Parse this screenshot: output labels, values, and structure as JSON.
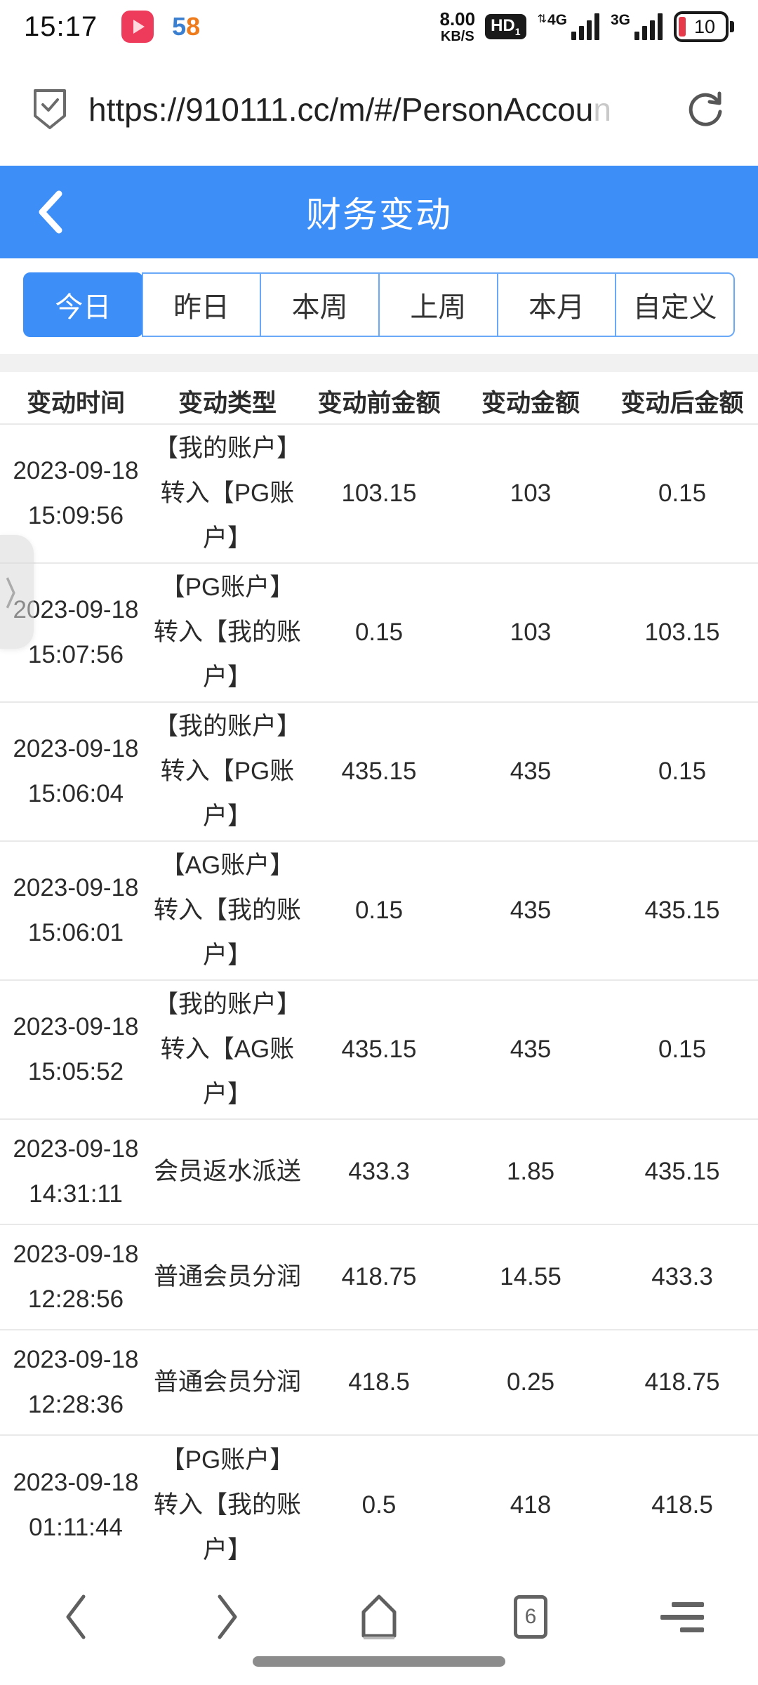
{
  "colors": {
    "accent_blue": "#3d8ef7",
    "battery_warning_red": "#e6394a",
    "play_badge_red": "#ee3b5b",
    "logo58_blue": "#3b7fd0",
    "logo58_orange": "#ef7c1c"
  },
  "status_bar": {
    "time": "15:17",
    "logo_58_first_digit": "5",
    "logo_58_second_digit": "8",
    "net_speed_value": "8.00",
    "net_speed_unit": "KB/S",
    "hd_label": "HD",
    "hd_sub": "1",
    "signal_1_label": "4G",
    "signal_1_arrows": "⇅",
    "signal_2_label": "3G",
    "battery_level": "10"
  },
  "browser": {
    "url": "https://910111.cc/m/#/PersonAccou",
    "url_faded_tail": "n"
  },
  "header": {
    "title": "财务变动"
  },
  "filter_tabs": {
    "items": [
      {
        "label": "今日",
        "active": true
      },
      {
        "label": "昨日",
        "active": false
      },
      {
        "label": "本周",
        "active": false
      },
      {
        "label": "上周",
        "active": false
      },
      {
        "label": "本月",
        "active": false
      },
      {
        "label": "自定义",
        "active": false
      }
    ]
  },
  "table": {
    "columns": [
      "变动时间",
      "变动类型",
      "变动前金额",
      "变动金额",
      "变动后金额"
    ],
    "rows": [
      {
        "date": "2023-09-18",
        "time": "15:09:56",
        "type": "【我的账户】转入【PG账户】",
        "before": "103.15",
        "amount": "103",
        "after": "0.15"
      },
      {
        "date": "2023-09-18",
        "time": "15:07:56",
        "type": "【PG账户】转入【我的账户】",
        "before": "0.15",
        "amount": "103",
        "after": "103.15"
      },
      {
        "date": "2023-09-18",
        "time": "15:06:04",
        "type": "【我的账户】转入【PG账户】",
        "before": "435.15",
        "amount": "435",
        "after": "0.15"
      },
      {
        "date": "2023-09-18",
        "time": "15:06:01",
        "type": "【AG账户】转入【我的账户】",
        "before": "0.15",
        "amount": "435",
        "after": "435.15"
      },
      {
        "date": "2023-09-18",
        "time": "15:05:52",
        "type": "【我的账户】转入【AG账户】",
        "before": "435.15",
        "amount": "435",
        "after": "0.15"
      },
      {
        "date": "2023-09-18",
        "time": "14:31:11",
        "type": "会员返水派送",
        "before": "433.3",
        "amount": "1.85",
        "after": "435.15"
      },
      {
        "date": "2023-09-18",
        "time": "12:28:56",
        "type": "普通会员分润",
        "before": "418.75",
        "amount": "14.55",
        "after": "433.3"
      },
      {
        "date": "2023-09-18",
        "time": "12:28:36",
        "type": "普通会员分润",
        "before": "418.5",
        "amount": "0.25",
        "after": "418.75"
      },
      {
        "date": "2023-09-18",
        "time": "01:11:44",
        "type": "【PG账户】转入【我的账户】",
        "before": "0.5",
        "amount": "418",
        "after": "418.5"
      }
    ]
  },
  "drawer_handle": {
    "chevron": "〉"
  },
  "bottom_nav": {
    "tab_count": "6"
  }
}
